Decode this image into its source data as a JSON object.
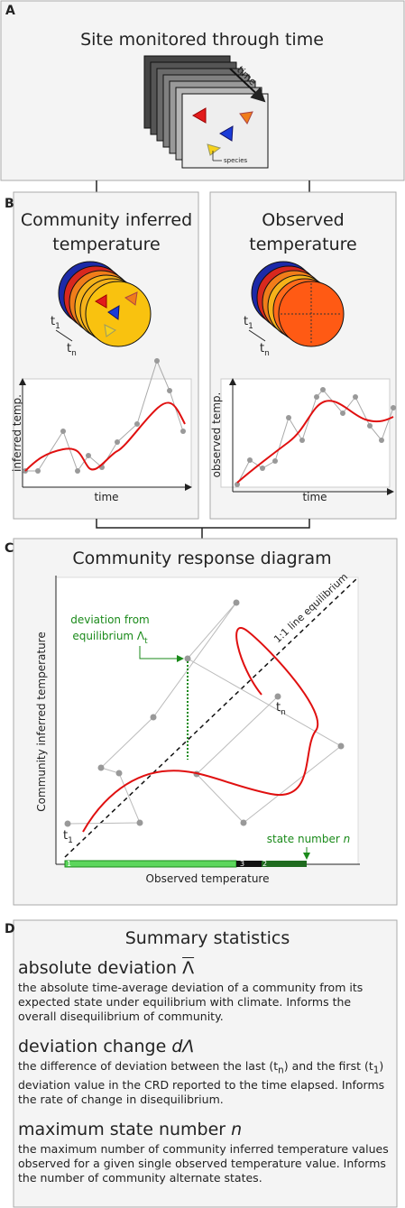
{
  "panel_a": {
    "label": "A",
    "title": "Site monitored through time",
    "time_label": "time",
    "species_label": "species"
  },
  "panel_b": {
    "label": "B",
    "left": {
      "title_lines": [
        "Community inferred",
        "temperature"
      ],
      "t_start": {
        "base": "t",
        "sub": "1"
      },
      "t_end": {
        "base": "t",
        "sub": "n"
      },
      "y_label": "inferred temp.",
      "x_label": "time"
    },
    "right": {
      "title_lines": [
        "Observed",
        "temperature"
      ],
      "t_start": {
        "base": "t",
        "sub": "1"
      },
      "t_end": {
        "base": "t",
        "sub": "n"
      },
      "y_label": "observed temp.",
      "x_label": "time"
    }
  },
  "panel_c": {
    "label": "C",
    "title": "Community response diagram",
    "y_label": "Community inferred temperature",
    "x_label": "Observed temperature",
    "equilibrium_label": "1:1 line equilibrium",
    "deviation_lines": [
      "deviation from",
      "equilibrium Λ"
    ],
    "deviation_sub": "t",
    "t_start": {
      "base": "t",
      "sub": "1"
    },
    "t_end": {
      "base": "t",
      "sub": "n"
    },
    "state_label": "state number",
    "state_symbol": "n",
    "bar_labels": [
      "1",
      "3",
      "2"
    ]
  },
  "panel_d": {
    "label": "D",
    "title": "Summary statistics",
    "items": [
      {
        "heading": "absolute deviation",
        "symbol": "Λ",
        "text_parts": [
          "the absolute time-average deviation of a community from its expected state under equilibrium with climate. Informs the overall disequilibrium of community."
        ],
        "subs": []
      },
      {
        "heading": "deviation change",
        "symbol": "dΛ",
        "text_parts": [
          "the difference of deviation between the last (",
          ") and the first (",
          ") deviation value in the CRD reported to the time elapsed. Informs the rate of change in disequilibrium."
        ],
        "subs": [
          {
            "base": "t",
            "sub": "n"
          },
          {
            "base": "t",
            "sub": "1"
          }
        ]
      },
      {
        "heading": "maximum state number",
        "symbol": "n",
        "text_parts": [
          "the maximum number of community inferred temperature values observed for a given single observed temperature value. Informs the number of community alternate states."
        ],
        "subs": []
      }
    ]
  }
}
